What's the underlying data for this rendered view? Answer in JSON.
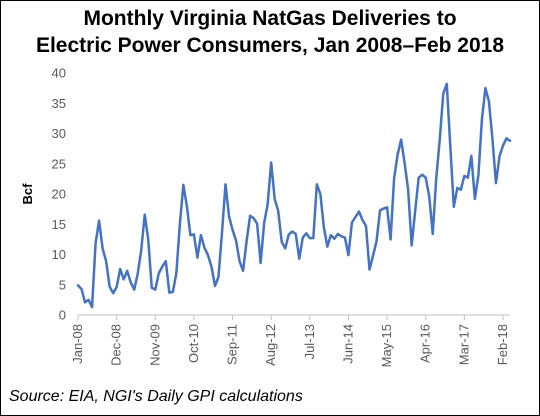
{
  "title_lines": [
    "Monthly Virginia NatGas Deliveries to",
    "Electric Power Consumers, Jan 2008–Feb 2018"
  ],
  "source": "Source: EIA, NGI's Daily GPI calculations",
  "colors": {
    "line": "#4472c4",
    "axis": "#bfbfbf",
    "text": "#595959"
  },
  "chart_data": {
    "type": "line",
    "title": "Monthly Virginia NatGas Deliveries to Electric Power Consumers, Jan 2008–Feb 2018",
    "ylabel": "Bcf",
    "xlabel": "",
    "ylim": [
      0,
      40
    ],
    "yticks": [
      0,
      5,
      10,
      15,
      20,
      25,
      30,
      35,
      40
    ],
    "grid": false,
    "x_start": "Jan-08",
    "x_end": "Feb-18",
    "xtick_labels": [
      "Jan-08",
      "Dec-08",
      "Nov-09",
      "Oct-10",
      "Sep-11",
      "Aug-12",
      "Jul-13",
      "Jun-14",
      "May-15",
      "Apr-16",
      "Mar-17",
      "Feb-18"
    ],
    "series": [
      {
        "values": [
          4.9,
          4.3,
          2.1,
          2.5,
          1.3,
          11.8,
          15.6,
          11.0,
          8.9,
          4.7,
          3.6,
          4.6,
          7.6,
          5.9,
          7.3,
          5.4,
          4.2,
          6.8,
          10.7,
          16.6,
          12.5,
          4.5,
          4.2,
          6.9,
          8.0,
          8.9,
          3.7,
          3.8,
          6.9,
          15.0,
          21.5,
          18.0,
          13.2,
          13.3,
          9.5,
          13.2,
          11.1,
          9.9,
          8.0,
          4.8,
          6.3,
          13.6,
          21.6,
          16.3,
          14.1,
          12.3,
          8.9,
          7.3,
          12.2,
          16.4,
          16.0,
          15.1,
          8.6,
          15.2,
          18.3,
          25.2,
          19.2,
          17.2,
          12.1,
          11.0,
          13.3,
          13.8,
          13.4,
          9.3,
          12.8,
          13.5,
          12.7,
          12.7,
          21.6,
          20.0,
          14.5,
          11.3,
          13.2,
          12.6,
          13.4,
          13.0,
          12.8,
          9.9,
          15.3,
          16.2,
          17.1,
          15.7,
          14.7,
          7.5,
          9.8,
          12.2,
          17.3,
          17.6,
          17.8,
          12.5,
          22.6,
          26.5,
          29.0,
          25.1,
          20.7,
          11.5,
          17.2,
          22.7,
          23.2,
          22.7,
          19.6,
          13.4,
          22.6,
          29.0,
          36.6,
          38.2,
          27.9,
          17.9,
          21.0,
          20.7,
          23.0,
          22.7,
          26.3,
          19.2,
          23.1,
          32.3,
          37.5,
          35.3,
          29.1,
          21.8,
          26.2,
          28.0,
          29.2,
          28.8
        ]
      }
    ]
  }
}
